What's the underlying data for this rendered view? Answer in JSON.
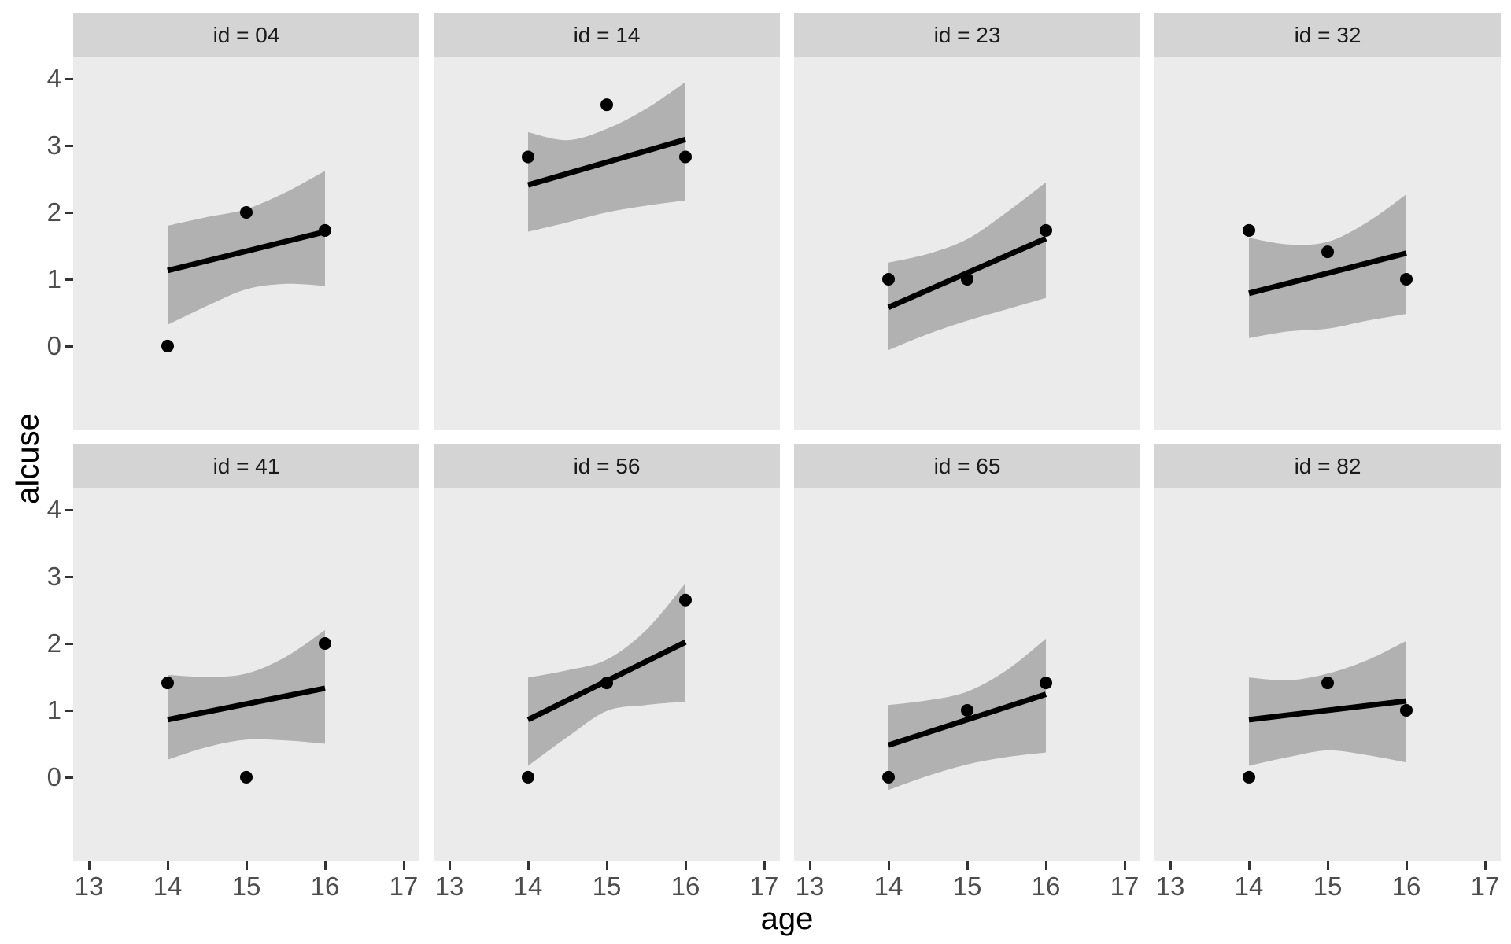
{
  "figure": {
    "y_axis_title": "alcuse",
    "x_axis_title": "age"
  },
  "chart_data": {
    "type": "scatter",
    "description": "Faceted scatter plots with linear fit lines and confidence ribbons, one panel per subject id",
    "facet_variable": "id",
    "facet_layout": {
      "rows": 2,
      "cols": 4
    },
    "xlabel": "age",
    "ylabel": "alcuse",
    "x_ticks": [
      13,
      14,
      15,
      16,
      17
    ],
    "y_ticks": [
      4,
      3,
      2,
      1,
      0
    ],
    "x_range": [
      12.8,
      17.2
    ],
    "y_range": [
      -1.26,
      4.33
    ],
    "grid": "off",
    "legend": "none",
    "panels": [
      {
        "label": "id = 04",
        "points": [
          [
            14,
            0
          ],
          [
            15,
            2
          ],
          [
            16,
            1.73
          ]
        ],
        "fit_line": {
          "x": [
            14,
            16
          ],
          "y": [
            1.13,
            1.71
          ]
        },
        "ribbon": {
          "x": [
            14,
            14.5,
            15,
            15.5,
            16
          ],
          "upper": [
            1.8,
            1.93,
            2.05,
            2.3,
            2.62
          ],
          "lower": [
            0.32,
            0.6,
            0.85,
            0.93,
            0.9
          ]
        }
      },
      {
        "label": "id = 14",
        "points": [
          [
            14,
            2.83
          ],
          [
            15,
            3.61
          ],
          [
            16,
            2.83
          ]
        ],
        "fit_line": {
          "x": [
            14,
            16
          ],
          "y": [
            2.41,
            3.09
          ]
        },
        "ribbon": {
          "x": [
            14,
            14.5,
            15,
            15.5,
            16
          ],
          "upper": [
            3.2,
            3.08,
            3.25,
            3.55,
            3.95
          ],
          "lower": [
            1.71,
            1.85,
            2.0,
            2.1,
            2.18
          ]
        }
      },
      {
        "label": "id = 23",
        "points": [
          [
            14,
            1
          ],
          [
            15,
            1
          ],
          [
            16,
            1.73
          ]
        ],
        "fit_line": {
          "x": [
            14,
            16
          ],
          "y": [
            0.58,
            1.61
          ]
        },
        "ribbon": {
          "x": [
            14,
            14.5,
            15,
            15.5,
            16
          ],
          "upper": [
            1.25,
            1.38,
            1.6,
            2.0,
            2.45
          ],
          "lower": [
            -0.06,
            0.18,
            0.38,
            0.55,
            0.72
          ]
        }
      },
      {
        "label": "id = 32",
        "points": [
          [
            14,
            1.73
          ],
          [
            15,
            1.41
          ],
          [
            16,
            1
          ]
        ],
        "fit_line": {
          "x": [
            14,
            16
          ],
          "y": [
            0.79,
            1.39
          ]
        },
        "ribbon": {
          "x": [
            14,
            14.5,
            15,
            15.5,
            16
          ],
          "upper": [
            1.62,
            1.52,
            1.56,
            1.85,
            2.27
          ],
          "lower": [
            0.12,
            0.22,
            0.26,
            0.38,
            0.48
          ]
        }
      },
      {
        "label": "id = 41",
        "points": [
          [
            14,
            1.41
          ],
          [
            15,
            0
          ],
          [
            16,
            2
          ]
        ],
        "fit_line": {
          "x": [
            14,
            16
          ],
          "y": [
            0.86,
            1.33
          ]
        },
        "ribbon": {
          "x": [
            14,
            14.5,
            15,
            15.5,
            16
          ],
          "upper": [
            1.53,
            1.5,
            1.55,
            1.8,
            2.2
          ],
          "lower": [
            0.26,
            0.45,
            0.56,
            0.55,
            0.5
          ]
        }
      },
      {
        "label": "id = 56",
        "points": [
          [
            14,
            0
          ],
          [
            15,
            1.41
          ],
          [
            16,
            2.65
          ]
        ],
        "fit_line": {
          "x": [
            14,
            16
          ],
          "y": [
            0.86,
            2.02
          ]
        },
        "ribbon": {
          "x": [
            14,
            14.5,
            15,
            15.5,
            16
          ],
          "upper": [
            1.49,
            1.6,
            1.76,
            2.2,
            2.9
          ],
          "lower": [
            0.17,
            0.6,
            0.99,
            1.08,
            1.13
          ]
        }
      },
      {
        "label": "id = 65",
        "points": [
          [
            14,
            0
          ],
          [
            15,
            1
          ],
          [
            16,
            1.41
          ]
        ],
        "fit_line": {
          "x": [
            14,
            16
          ],
          "y": [
            0.48,
            1.24
          ]
        },
        "ribbon": {
          "x": [
            14,
            14.5,
            15,
            15.5,
            16
          ],
          "upper": [
            1.08,
            1.15,
            1.28,
            1.6,
            2.07
          ],
          "lower": [
            -0.19,
            0.02,
            0.19,
            0.3,
            0.37
          ]
        }
      },
      {
        "label": "id = 82",
        "points": [
          [
            14,
            0
          ],
          [
            15,
            1.41
          ],
          [
            16,
            1
          ]
        ],
        "fit_line": {
          "x": [
            14,
            16
          ],
          "y": [
            0.86,
            1.14
          ]
        },
        "ribbon": {
          "x": [
            14,
            14.5,
            15,
            15.5,
            16
          ],
          "upper": [
            1.49,
            1.45,
            1.55,
            1.75,
            2.04
          ],
          "lower": [
            0.17,
            0.3,
            0.4,
            0.33,
            0.22
          ]
        }
      }
    ],
    "style": {
      "panel_bg": "#EBEBEB",
      "strip_bg": "#D4D4D4",
      "ribbon_color": "#B1B1B1",
      "fit_line_color": "#000000",
      "point_color": "#000000",
      "tick_color": "#333333",
      "tick_label_color": "#4D4D4D",
      "strip_text_color": "#1A1A1A",
      "axis_title_color": "#000000"
    }
  }
}
